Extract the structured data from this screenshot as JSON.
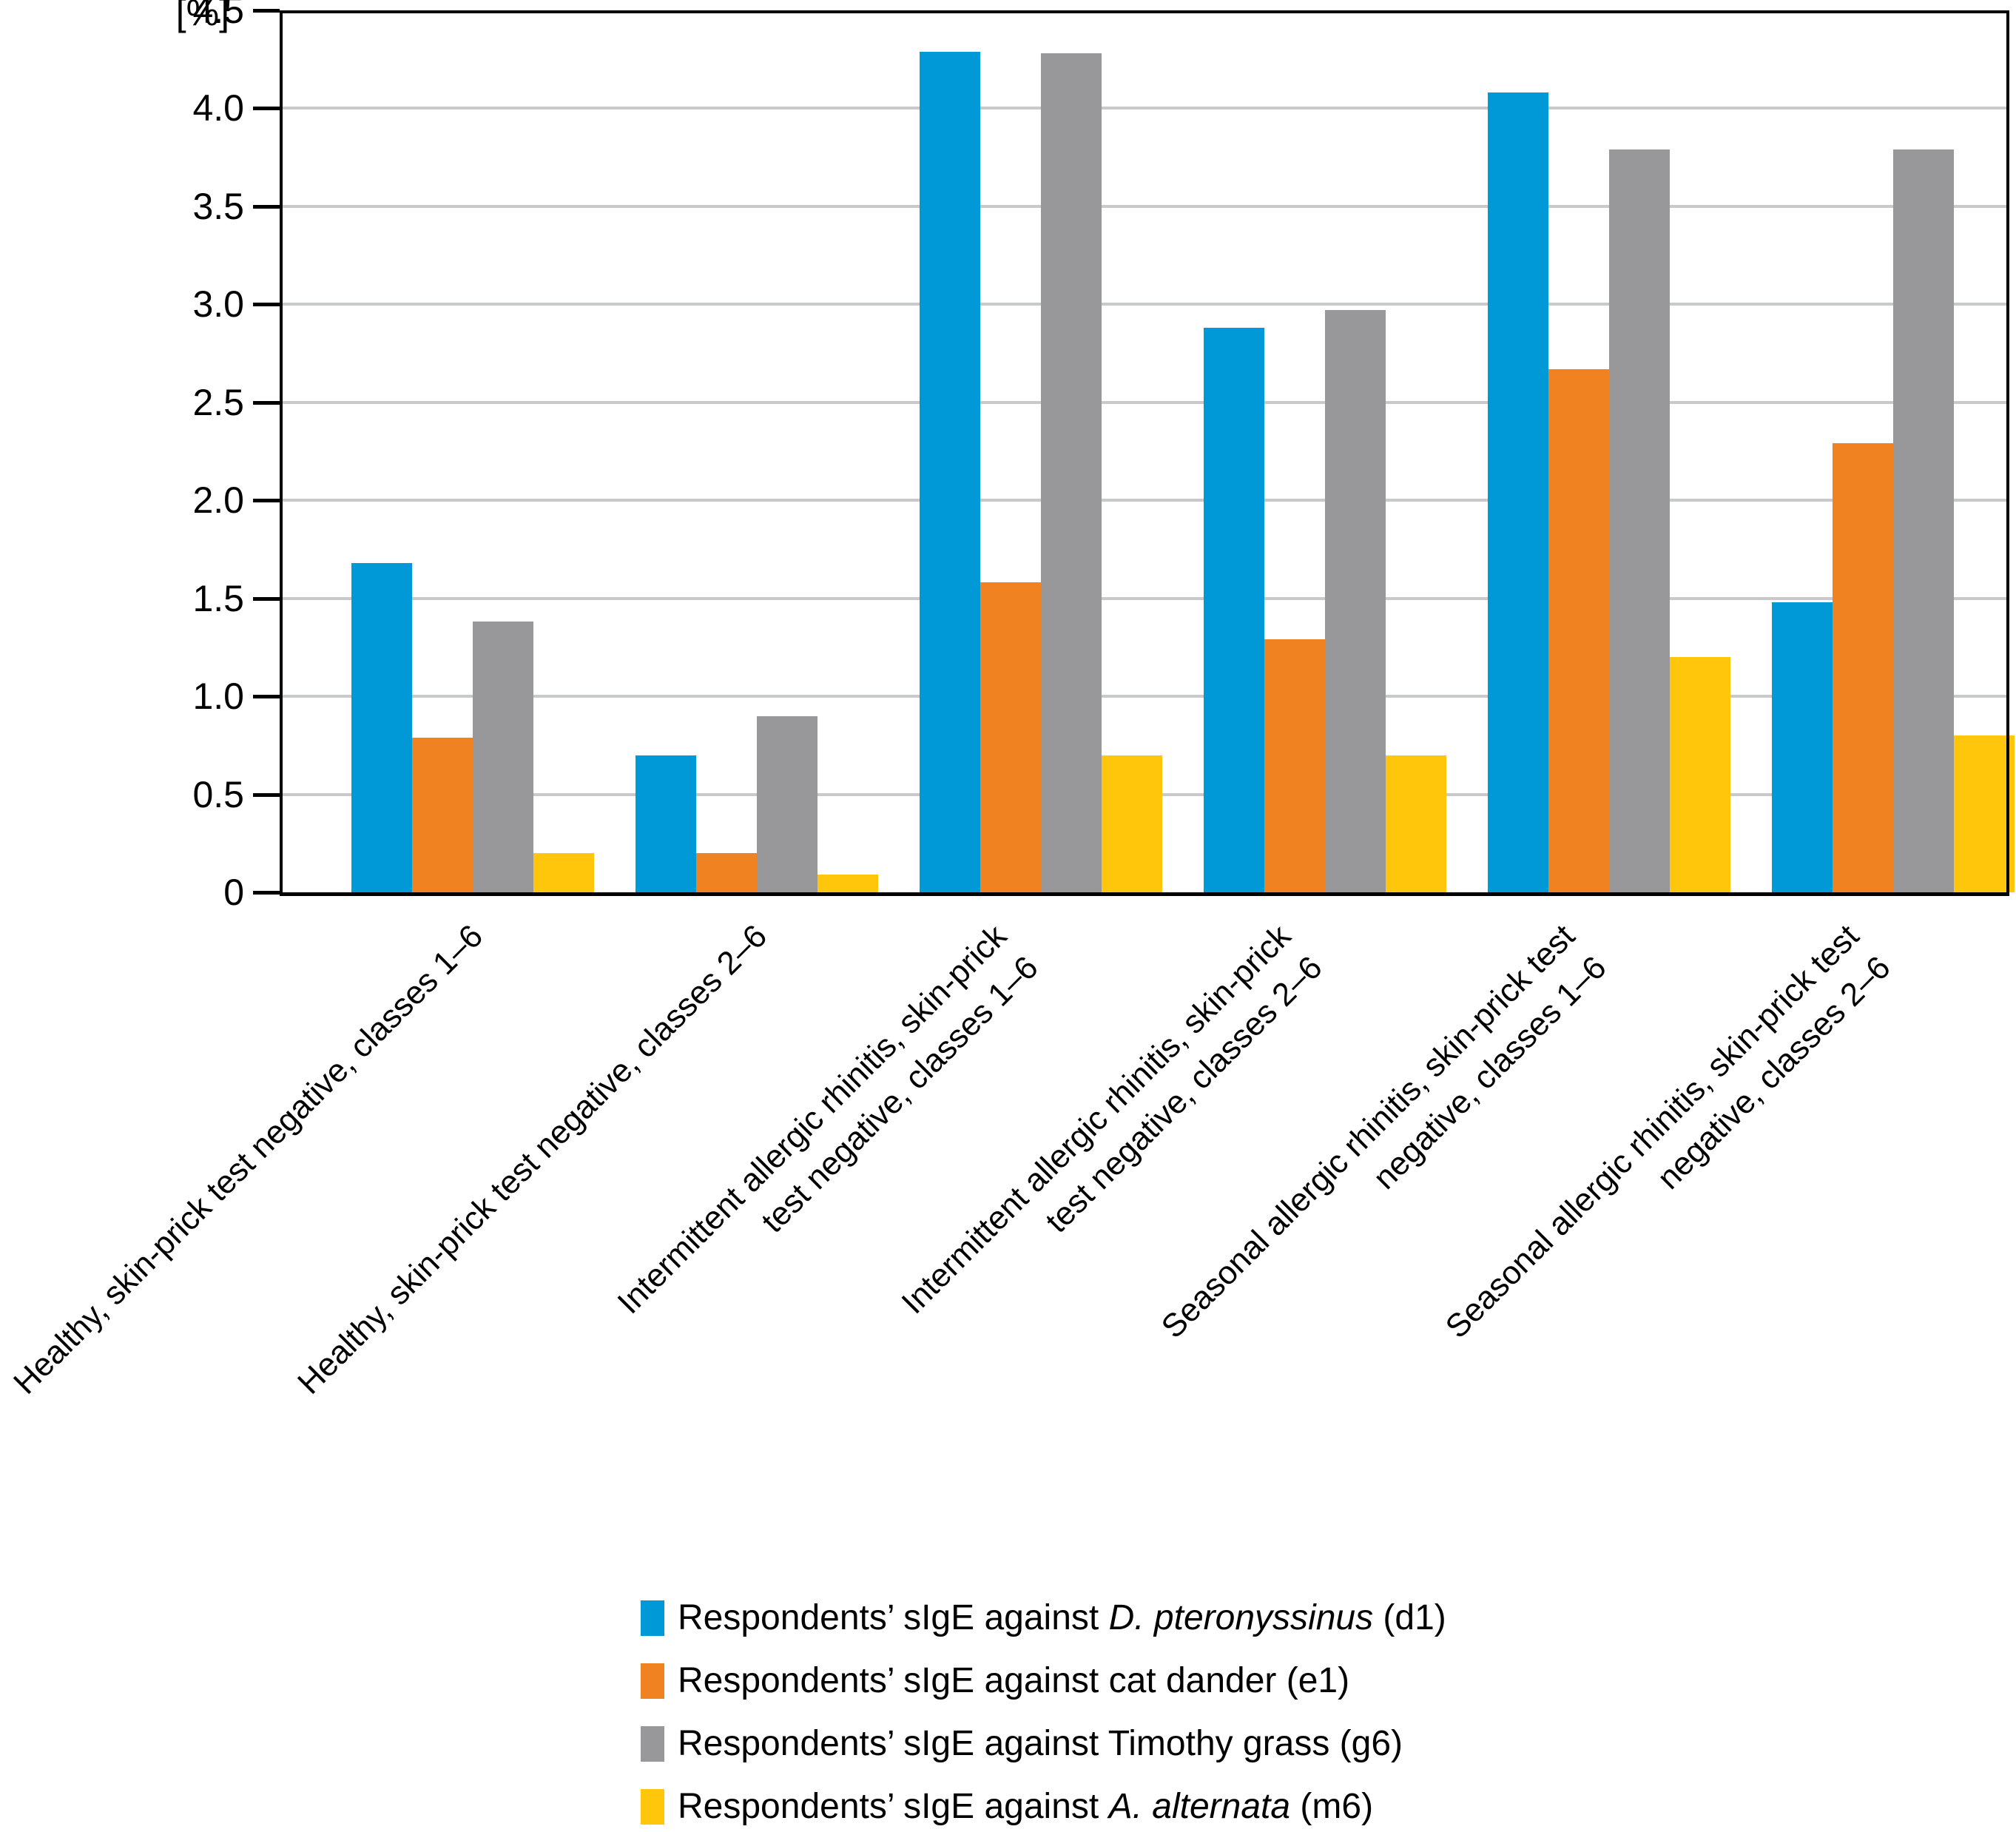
{
  "chart_data": {
    "type": "bar",
    "title": "",
    "unit_label": "[%]",
    "ylabel": "[%]",
    "xlabel": "",
    "ylim": [
      0,
      4.5
    ],
    "ytick_step": 0.5,
    "yticks": [
      "0",
      "0.5",
      "1.0",
      "1.5",
      "2.0",
      "2.5",
      "3.0",
      "3.5",
      "4.0",
      "4.5"
    ],
    "grid": true,
    "legend_position": "bottom",
    "categories": [
      {
        "label": "Healthy, skin-prick test negative, classes 1–6",
        "lines": [
          "Healthy, skin-prick test negative, classes 1–6"
        ]
      },
      {
        "label": "Healthy, skin-prick test negative, classes 2–6",
        "lines": [
          "Healthy, skin-prick test negative, classes 2–6"
        ]
      },
      {
        "label": "Intermittent allergic rhinitis, skin-prick test negative, classes 1–6",
        "lines": [
          "Intermittent allergic rhinitis, skin-prick",
          "test negative, classes 1–6"
        ]
      },
      {
        "label": "Intermittent allergic rhinitis, skin-prick test negative, classes 2–6",
        "lines": [
          "Intermittent allergic rhinitis, skin-prick",
          "test negative, classes 2–6"
        ]
      },
      {
        "label": "Seasonal allergic rhinitis, skin-prick test negative, classes 1–6",
        "lines": [
          "Seasonal allergic rhinitis, skin-prick test",
          "negative, classes 1–6"
        ]
      },
      {
        "label": "Seasonal allergic rhinitis, skin-prick test negative, classes 2–6",
        "lines": [
          "Seasonal allergic rhinitis, skin-prick test",
          "negative, classes 2–6"
        ]
      }
    ],
    "series": [
      {
        "name": "Respondents’ sIgE against D. pteronyssinus (d1)",
        "color": "#0099d8",
        "values": [
          1.68,
          0.7,
          4.29,
          2.88,
          4.08,
          1.48
        ]
      },
      {
        "name": "Respondents’ sIgE against cat dander (e1)",
        "color": "#f08222",
        "values": [
          0.79,
          0.2,
          1.58,
          1.29,
          2.67,
          2.29
        ]
      },
      {
        "name": "Respondents’ sIgE against Timothy grass (g6)",
        "color": "#98989a",
        "values": [
          1.38,
          0.9,
          4.28,
          2.97,
          3.79,
          3.79
        ]
      },
      {
        "name": "Respondents’ sIgE against A. alternata (m6)",
        "color": "#ffc60b",
        "values": [
          0.2,
          0.09,
          0.7,
          0.7,
          1.2,
          0.8
        ]
      }
    ],
    "legend": [
      {
        "parts": [
          {
            "t": "Respondents’ sIgE against ",
            "i": false
          },
          {
            "t": "D. pteronyssinus",
            "i": true
          },
          {
            "t": " (d1)",
            "i": false
          }
        ]
      },
      {
        "parts": [
          {
            "t": "Respondents’ sIgE against cat dander (e1)",
            "i": false
          }
        ]
      },
      {
        "parts": [
          {
            "t": "Respondents’ sIgE against Timothy grass (g6)",
            "i": false
          }
        ]
      },
      {
        "parts": [
          {
            "t": "Respondents’ sIgE against ",
            "i": false
          },
          {
            "t": "A. alternata",
            "i": true
          },
          {
            "t": " (m6)",
            "i": false
          }
        ]
      }
    ],
    "colors": {
      "grid": "#c8c9ca",
      "axis": "#000000",
      "series_blue": "#0099d8",
      "series_orange": "#f08222",
      "series_gray": "#98989a",
      "series_yellow": "#ffc60b"
    }
  }
}
